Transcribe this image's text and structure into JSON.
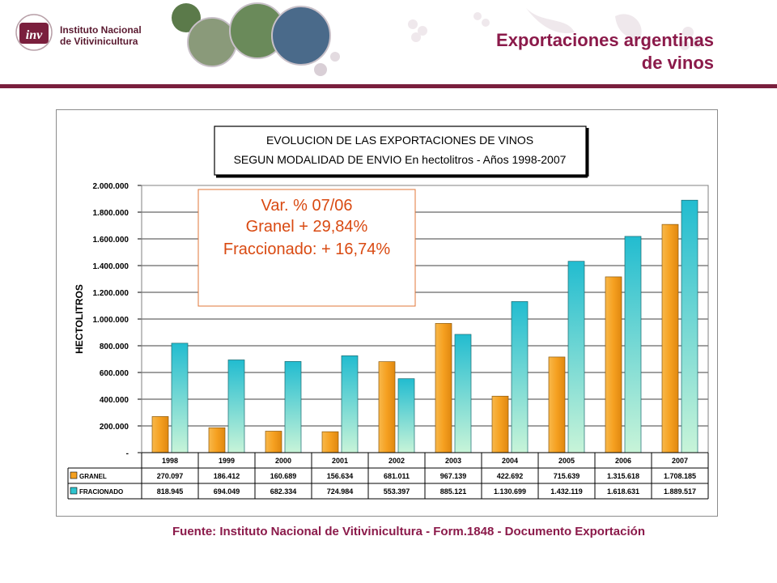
{
  "header": {
    "org_name_line1": "Instituto Nacional",
    "org_name_line2": "de Vitivinicultura",
    "logo_letters": "inv",
    "slide_title_line1": "Exportaciones argentinas",
    "slide_title_line2": "de vinos"
  },
  "colors": {
    "brand": "#7a1f3d",
    "title": "#8b1a4a",
    "granel_bar": "#f5a020",
    "fraccionado_bar": "#2ec4cf"
  },
  "chart_data": {
    "type": "bar",
    "title_line1": "EVOLUCION DE LAS EXPORTACIONES DE VINOS",
    "title_line2": "SEGUN MODALIDAD DE ENVIO  En hectolitros - Años 1998-2007",
    "ylabel": "HECTOLITROS",
    "ylim": [
      0,
      2000000
    ],
    "ytick_values": [
      0,
      200000,
      400000,
      600000,
      800000,
      1000000,
      1200000,
      1400000,
      1600000,
      1800000,
      2000000
    ],
    "ytick_labels": [
      "-",
      "200.000",
      "400.000",
      "600.000",
      "800.000",
      "1.000.000",
      "1.200.000",
      "1.400.000",
      "1.600.000",
      "1.800.000",
      "2.000.000"
    ],
    "grid": true,
    "legend": "data-table",
    "categories": [
      "1998",
      "1999",
      "2000",
      "2001",
      "2002",
      "2003",
      "2004",
      "2005",
      "2006",
      "2007"
    ],
    "series": [
      {
        "name": "GRANEL",
        "values": [
          270097,
          186412,
          160689,
          156634,
          681011,
          967139,
          422692,
          715639,
          1315618,
          1708185
        ],
        "labels": [
          "270.097",
          "186.412",
          "160.689",
          "156.634",
          "681.011",
          "967.139",
          "422.692",
          "715.639",
          "1.315.618",
          "1.708.185"
        ]
      },
      {
        "name": "FRACIONADO",
        "values": [
          818945,
          694049,
          682334,
          724984,
          553397,
          885121,
          1130699,
          1432119,
          1618631,
          1889517
        ],
        "labels": [
          "818.945",
          "694.049",
          "682.334",
          "724.984",
          "553.397",
          "885.121",
          "1.130.699",
          "1.432.119",
          "1.618.631",
          "1.889.517"
        ]
      }
    ],
    "annotation": {
      "line1": "Var. % 07/06",
      "line2": "Granel  + 29,84%",
      "line3": "Fraccionado: + 16,74%"
    }
  },
  "footer": {
    "source": "Fuente:  Instituto Nacional de Vitivinicultura - Form.1848 - Documento Exportación"
  }
}
